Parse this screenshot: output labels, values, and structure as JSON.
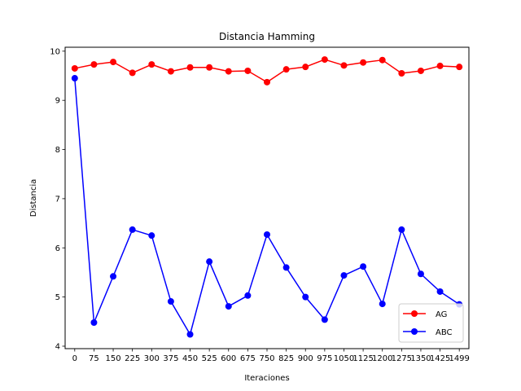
{
  "chart_data": {
    "type": "line",
    "title": "Distancia Hamming",
    "xlabel": "Iteraciones",
    "ylabel": "Distancia",
    "categories": [
      "0",
      "75",
      "150",
      "225",
      "300",
      "375",
      "450",
      "525",
      "600",
      "675",
      "750",
      "825",
      "900",
      "975",
      "1050",
      "1125",
      "1200",
      "1275",
      "1350",
      "1425",
      "1499"
    ],
    "ylim": [
      3.95,
      10.08
    ],
    "yticks": [
      4,
      5,
      6,
      7,
      8,
      9,
      10
    ],
    "grid": false,
    "legend_position": "lower-right",
    "series": [
      {
        "name": "AG",
        "color": "#ff0000",
        "values": [
          9.65,
          9.73,
          9.78,
          9.56,
          9.73,
          9.59,
          9.67,
          9.67,
          9.59,
          9.6,
          9.37,
          9.63,
          9.68,
          9.83,
          9.71,
          9.77,
          9.82,
          9.55,
          9.6,
          9.7,
          9.68
        ]
      },
      {
        "name": "ABC",
        "color": "#0000ff",
        "values": [
          9.45,
          4.48,
          5.42,
          6.37,
          6.25,
          4.91,
          4.24,
          5.72,
          4.81,
          5.03,
          6.27,
          5.6,
          5.0,
          4.54,
          5.44,
          5.62,
          4.86,
          6.37,
          5.47,
          5.11,
          4.85
        ]
      }
    ]
  }
}
